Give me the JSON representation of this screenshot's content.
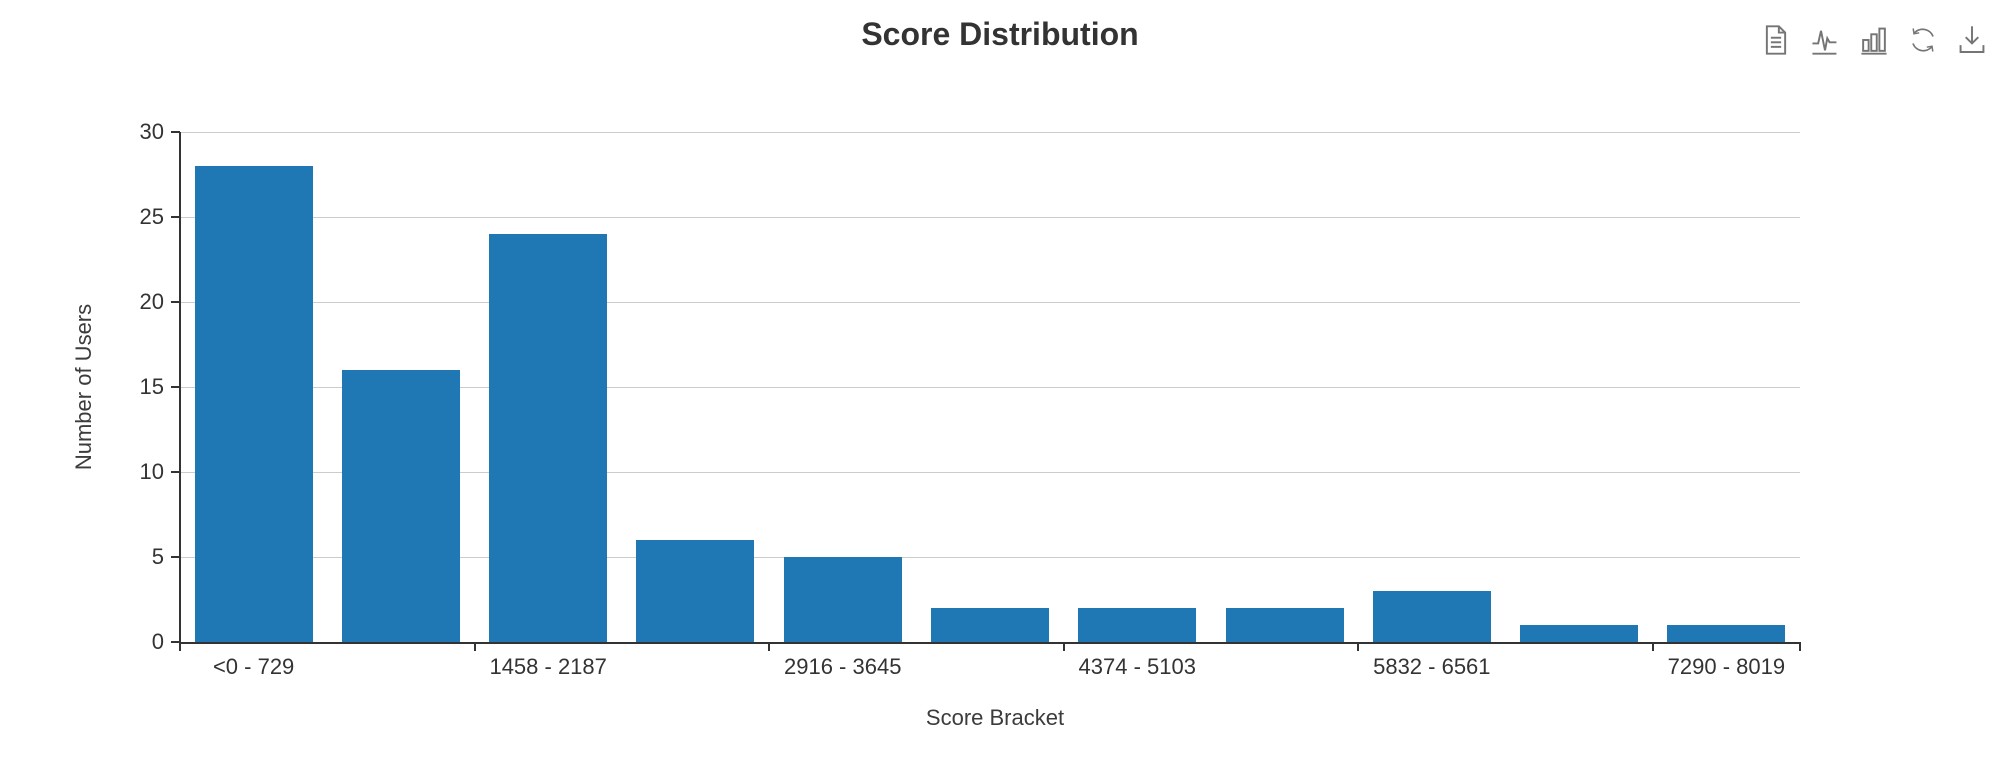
{
  "chart": {
    "title": "Score Distribution",
    "xlabel": "Score Bracket",
    "ylabel": "Number of Users",
    "colors": {
      "bar": "#1f77b4",
      "axis": "#333333",
      "grid": "#cccccc",
      "text": "#333333",
      "toolbox_icon": "#757575"
    }
  },
  "toolbox": {
    "icons": [
      "data-view-icon",
      "line-chart-switch-icon",
      "bar-chart-switch-icon",
      "restore-icon",
      "save-image-download-icon"
    ]
  },
  "chart_data": {
    "type": "bar",
    "title": "Score Distribution",
    "xlabel": "Score Bracket",
    "ylabel": "Number of Users",
    "categories": [
      "<0 - 729",
      "",
      "1458 - 2187",
      "",
      "2916 - 3645",
      "",
      "4374 - 5103",
      "",
      "5832 - 6561",
      "",
      "7290 - 8019"
    ],
    "values": [
      28,
      16,
      24,
      6,
      5,
      2,
      2,
      2,
      3,
      1,
      1
    ],
    "ylim": [
      0,
      30
    ],
    "y_ticks": [
      0,
      5,
      10,
      15,
      20,
      25,
      30
    ],
    "x_label_interval": 2,
    "x_tick_boundaries": [
      0,
      2,
      4,
      6,
      8,
      10,
      11
    ],
    "grid": true,
    "legend": false,
    "bar_color": "#1f77b4"
  }
}
